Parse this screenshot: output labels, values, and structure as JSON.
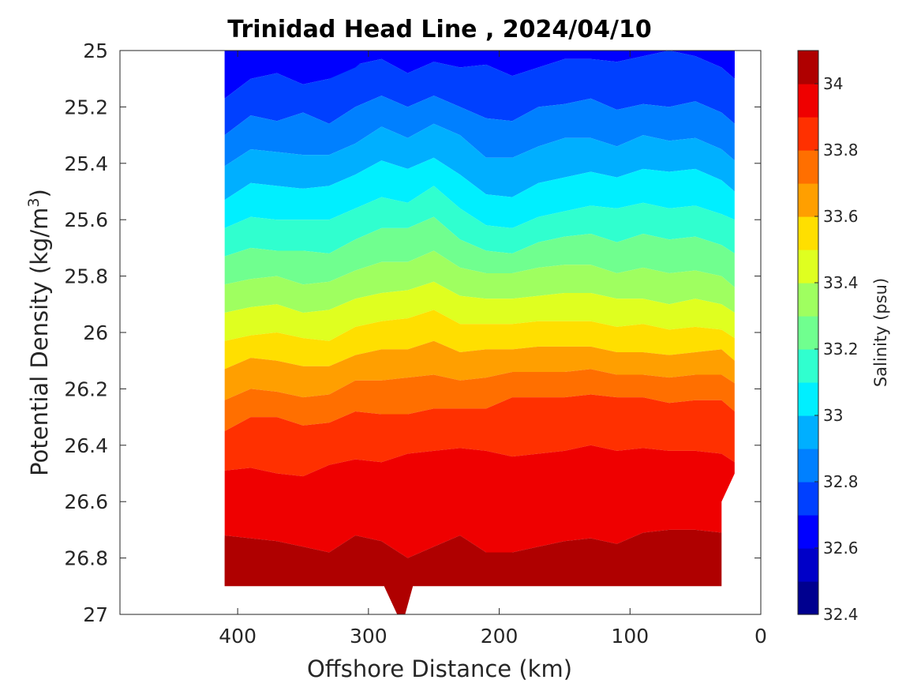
{
  "chart_data": {
    "type": "heatmap",
    "subtype": "filled-contour",
    "title": "Trinidad Head Line , 2024/04/10",
    "xlabel": "Offshore Distance (km)",
    "ylabel": "Potential Density (kg/m",
    "ylabel_superscript": "3",
    "ylabel_suffix": ")",
    "x_direction": "reversed",
    "xlim": [
      490,
      0
    ],
    "ylim": [
      25,
      27
    ],
    "y_direction": "reversed",
    "xticks": [
      400,
      300,
      200,
      100,
      0
    ],
    "xtick_labels": [
      "400",
      "300",
      "200",
      "100",
      "0"
    ],
    "yticks": [
      25,
      25.2,
      25.4,
      25.6,
      25.8,
      26,
      26.2,
      26.4,
      26.6,
      26.8,
      27
    ],
    "ytick_labels": [
      "25",
      "25.2",
      "25.4",
      "25.6",
      "25.8",
      "26",
      "26.2",
      "26.4",
      "26.6",
      "26.8",
      "27"
    ],
    "colorbar": {
      "label": "Salinity (psu)",
      "range": [
        32.4,
        34.1
      ],
      "ticks": [
        32.4,
        32.6,
        32.8,
        33,
        33.2,
        33.4,
        33.6,
        33.8,
        34
      ],
      "tick_labels": [
        "32.4",
        "32.6",
        "32.8",
        "33",
        "33.2",
        "33.4",
        "33.6",
        "33.8",
        "34"
      ],
      "level_step": 0.1,
      "colormap": "jet"
    },
    "colors": {
      "levels": [
        "#00008F",
        "#0000C8",
        "#0000FF",
        "#0040FF",
        "#0080FF",
        "#00AFFF",
        "#00EFFF",
        "#30FFCF",
        "#70FF8F",
        "#9FFF60",
        "#DFFF20",
        "#FFDF00",
        "#FF9F00",
        "#FF6F00",
        "#FF3000",
        "#EF0000",
        "#AF0000"
      ]
    },
    "data_extent_km": [
      410,
      20
    ],
    "sample_x_km": [
      410,
      390,
      370,
      350,
      330,
      310,
      290,
      270,
      250,
      230,
      210,
      190,
      170,
      150,
      130,
      110,
      90,
      70,
      50,
      30,
      20
    ],
    "contour_levels_psu": [
      32.7,
      32.8,
      32.9,
      33.0,
      33.1,
      33.2,
      33.3,
      33.4,
      33.5,
      33.6,
      33.7,
      33.8,
      33.9,
      34.0
    ],
    "isohaline_density": [
      [
        25.17,
        25.1,
        25.08,
        25.12,
        25.1,
        25.05,
        25.03,
        25.08,
        25.04,
        25.06,
        25.05,
        25.09,
        25.06,
        25.03,
        25.03,
        25.04,
        25.02,
        25.0,
        25.02,
        25.06,
        25.1
      ],
      [
        25.3,
        25.23,
        25.25,
        25.22,
        25.26,
        25.2,
        25.16,
        25.2,
        25.16,
        25.2,
        25.24,
        25.25,
        25.2,
        25.19,
        25.17,
        25.21,
        25.19,
        25.2,
        25.18,
        25.22,
        25.26
      ],
      [
        25.41,
        25.35,
        25.36,
        25.37,
        25.37,
        25.33,
        25.27,
        25.31,
        25.26,
        25.3,
        25.38,
        25.38,
        25.34,
        25.31,
        25.31,
        25.34,
        25.3,
        25.32,
        25.31,
        25.35,
        25.39
      ],
      [
        25.53,
        25.47,
        25.48,
        25.49,
        25.48,
        25.44,
        25.39,
        25.42,
        25.38,
        25.44,
        25.51,
        25.52,
        25.47,
        25.45,
        25.43,
        25.45,
        25.42,
        25.43,
        25.42,
        25.46,
        25.5
      ],
      [
        25.63,
        25.59,
        25.6,
        25.6,
        25.6,
        25.56,
        25.52,
        25.54,
        25.48,
        25.56,
        25.62,
        25.63,
        25.59,
        25.57,
        25.55,
        25.56,
        25.54,
        25.56,
        25.55,
        25.58,
        25.6
      ],
      [
        25.73,
        25.7,
        25.71,
        25.71,
        25.72,
        25.67,
        25.63,
        25.63,
        25.59,
        25.67,
        25.71,
        25.72,
        25.68,
        25.66,
        25.65,
        25.68,
        25.65,
        25.67,
        25.66,
        25.69,
        25.72
      ],
      [
        25.83,
        25.81,
        25.8,
        25.83,
        25.82,
        25.78,
        25.75,
        25.75,
        25.71,
        25.77,
        25.79,
        25.79,
        25.77,
        25.76,
        25.76,
        25.79,
        25.77,
        25.79,
        25.78,
        25.8,
        25.84
      ],
      [
        25.93,
        25.91,
        25.9,
        25.93,
        25.92,
        25.88,
        25.86,
        25.85,
        25.82,
        25.87,
        25.88,
        25.88,
        25.87,
        25.86,
        25.86,
        25.88,
        25.88,
        25.9,
        25.88,
        25.9,
        25.93
      ],
      [
        26.03,
        26.01,
        26.0,
        26.02,
        26.03,
        25.98,
        25.96,
        25.95,
        25.92,
        25.97,
        25.97,
        25.97,
        25.96,
        25.96,
        25.96,
        25.98,
        25.97,
        25.99,
        25.98,
        25.99,
        26.02
      ],
      [
        26.13,
        26.09,
        26.1,
        26.12,
        26.12,
        26.08,
        26.06,
        26.06,
        26.03,
        26.07,
        26.06,
        26.06,
        26.05,
        26.05,
        26.05,
        26.07,
        26.07,
        26.08,
        26.07,
        26.06,
        26.1
      ],
      [
        26.24,
        26.2,
        26.21,
        26.23,
        26.22,
        26.17,
        26.17,
        26.16,
        26.15,
        26.17,
        26.16,
        26.14,
        26.14,
        26.14,
        26.13,
        26.15,
        26.15,
        26.16,
        26.15,
        26.15,
        26.18
      ],
      [
        26.35,
        26.3,
        26.3,
        26.33,
        26.32,
        26.28,
        26.29,
        26.29,
        26.27,
        26.27,
        26.27,
        26.23,
        26.23,
        26.23,
        26.22,
        26.23,
        26.23,
        26.25,
        26.24,
        26.24,
        26.28
      ],
      [
        26.49,
        26.48,
        26.5,
        26.51,
        26.47,
        26.45,
        26.46,
        26.43,
        26.42,
        26.41,
        26.42,
        26.44,
        26.43,
        26.42,
        26.4,
        26.42,
        26.41,
        26.42,
        26.42,
        26.43,
        26.46
      ],
      [
        26.72,
        26.73,
        26.74,
        26.76,
        26.78,
        26.72,
        26.74,
        26.8,
        26.76,
        26.72,
        26.78,
        26.78,
        26.76,
        26.74,
        26.73,
        26.75,
        26.71,
        26.7,
        26.7,
        26.71,
        26.72
      ]
    ]
  }
}
